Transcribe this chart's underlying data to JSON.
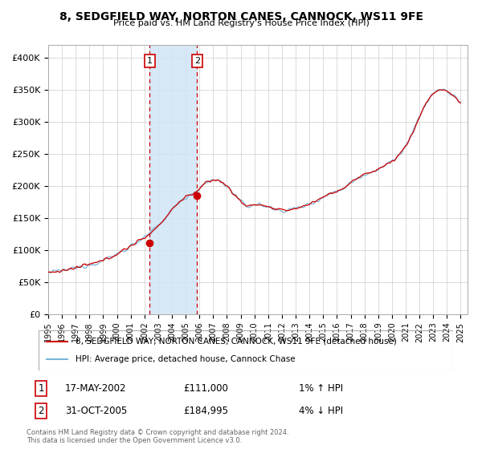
{
  "title": "8, SEDGFIELD WAY, NORTON CANES, CANNOCK, WS11 9FE",
  "subtitle": "Price paid vs. HM Land Registry's House Price Index (HPI)",
  "ylabel_ticks": [
    "£0",
    "£50K",
    "£100K",
    "£150K",
    "£200K",
    "£250K",
    "£300K",
    "£350K",
    "£400K"
  ],
  "ylim": [
    0,
    420000
  ],
  "xlim_start": 1995.0,
  "xlim_end": 2025.5,
  "transaction1_x": 2002.38,
  "transaction1_y": 111000,
  "transaction1_label": "1",
  "transaction1_date": "17-MAY-2002",
  "transaction1_price": "£111,000",
  "transaction1_hpi": "1% ↑ HPI",
  "transaction2_x": 2005.83,
  "transaction2_y": 184995,
  "transaction2_label": "2",
  "transaction2_date": "31-OCT-2005",
  "transaction2_price": "£184,995",
  "transaction2_hpi": "4% ↓ HPI",
  "legend_line1": "8, SEDGFIELD WAY, NORTON CANES, CANNOCK, WS11 9FE (detached house)",
  "legend_line2": "HPI: Average price, detached house, Cannock Chase",
  "footer": "Contains HM Land Registry data © Crown copyright and database right 2024.\nThis data is licensed under the Open Government Licence v3.0.",
  "hpi_color": "#7ab5d8",
  "price_color": "#cc0000",
  "vline_color": "#cc0000",
  "highlight_color": "#d0e4f5",
  "background_color": "#ffffff",
  "grid_color": "#cccccc",
  "label_box_color": "#cc0000"
}
